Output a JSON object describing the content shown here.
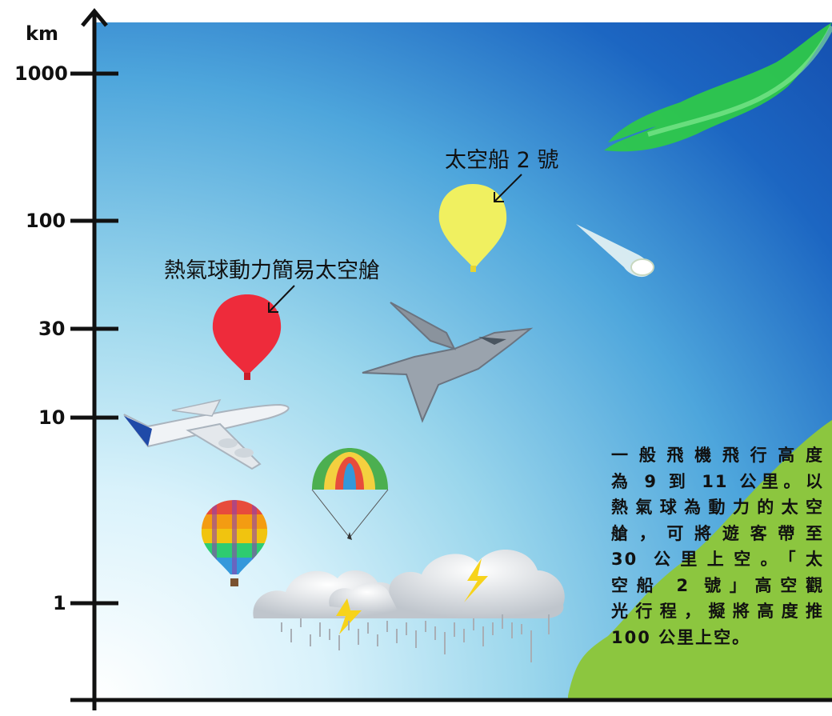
{
  "axis": {
    "unit": "km",
    "ticks": [
      {
        "label": "1000",
        "km": 1000
      },
      {
        "label": "100",
        "km": 100
      },
      {
        "label": "30",
        "km": 30
      },
      {
        "label": "10",
        "km": 10
      },
      {
        "label": "1",
        "km": 1
      }
    ]
  },
  "callouts": {
    "spaceship_label": "太空船 2 號",
    "balloon_capsule_label": "熱氣球動力簡易太空艙"
  },
  "description": {
    "lines": [
      "一般飛機飛行高度",
      "為 9 到 11 公里。以",
      "熱氣球為動力的太空",
      "艙，可將遊客帶至",
      "30 公里上空。「太",
      "空船 2 號」高空觀",
      "光行程，擬將高度推",
      "100 公里上空。"
    ]
  },
  "colors": {
    "spaceship_balloon": "#f0f060",
    "capsule_balloon": "#ee2b3b",
    "ground": "#8cc63f",
    "aurora": "#2ec84a"
  },
  "icons": [
    "airliner-icon",
    "fighter-jet-icon",
    "parachute-icon",
    "hot-air-balloon-icon",
    "meteor-icon",
    "storm-cloud-icon",
    "lightning-icon",
    "aurora-icon"
  ]
}
